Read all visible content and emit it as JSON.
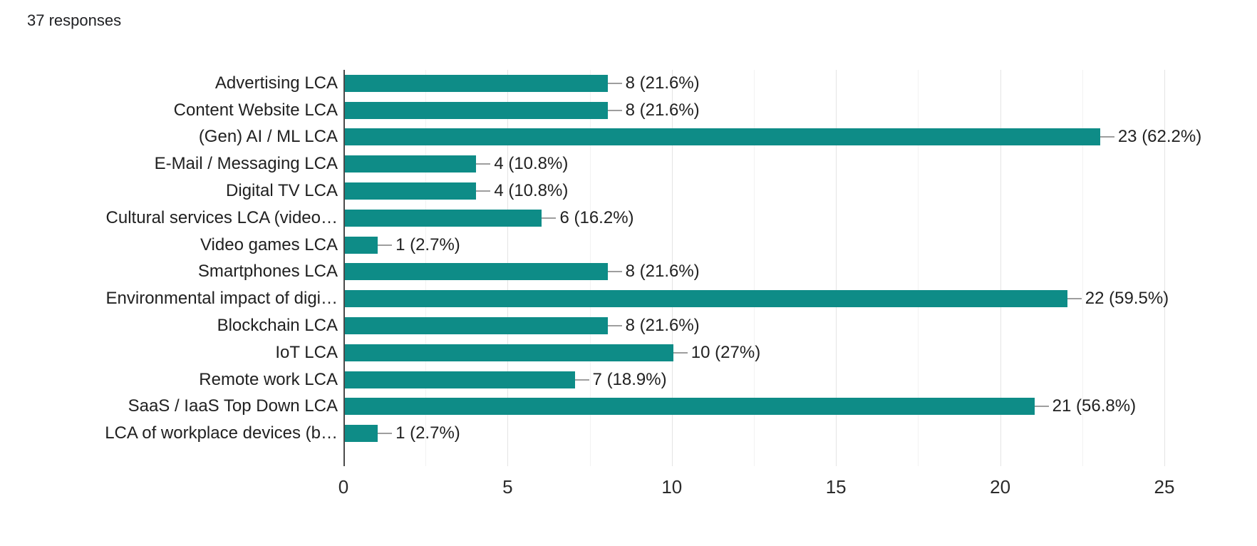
{
  "header": {
    "responses_label": "37 responses"
  },
  "colors": {
    "bar": "#0e8c87",
    "connector": "#9e9e9e",
    "grid_major": "#e4e4e4",
    "grid_minor": "#f2f2f2",
    "axis_line": "#4a4a4a",
    "text": "#212121"
  },
  "chart_data": {
    "type": "bar",
    "orientation": "horizontal",
    "title": "37 responses",
    "xlabel": "",
    "ylabel": "",
    "xlim": [
      0,
      25
    ],
    "x_ticks": [
      0,
      5,
      10,
      15,
      20,
      25
    ],
    "minor_grid_step": 2.5,
    "grid": true,
    "legend": false,
    "total_responses": 37,
    "categories": [
      "Advertising LCA",
      "Content Website LCA",
      "(Gen) AI / ML LCA",
      "E-Mail / Messaging LCA",
      "Digital TV LCA",
      "Cultural services LCA (video…",
      "Video games LCA",
      "Smartphones LCA",
      "Environmental impact of digi…",
      "Blockchain LCA",
      "IoT LCA",
      "Remote work LCA",
      "SaaS / IaaS Top Down LCA",
      "LCA of workplace devices (b…"
    ],
    "values": [
      8,
      8,
      23,
      4,
      4,
      6,
      1,
      8,
      22,
      8,
      10,
      7,
      21,
      1
    ],
    "value_labels": [
      "8 (21.6%)",
      "8 (21.6%)",
      "23 (62.2%)",
      "4 (10.8%)",
      "4 (10.8%)",
      "6 (16.2%)",
      "1 (2.7%)",
      "8 (21.6%)",
      "22 (59.5%)",
      "8 (21.6%)",
      "10 (27%)",
      "7 (18.9%)",
      "21 (56.8%)",
      "1 (2.7%)"
    ]
  }
}
